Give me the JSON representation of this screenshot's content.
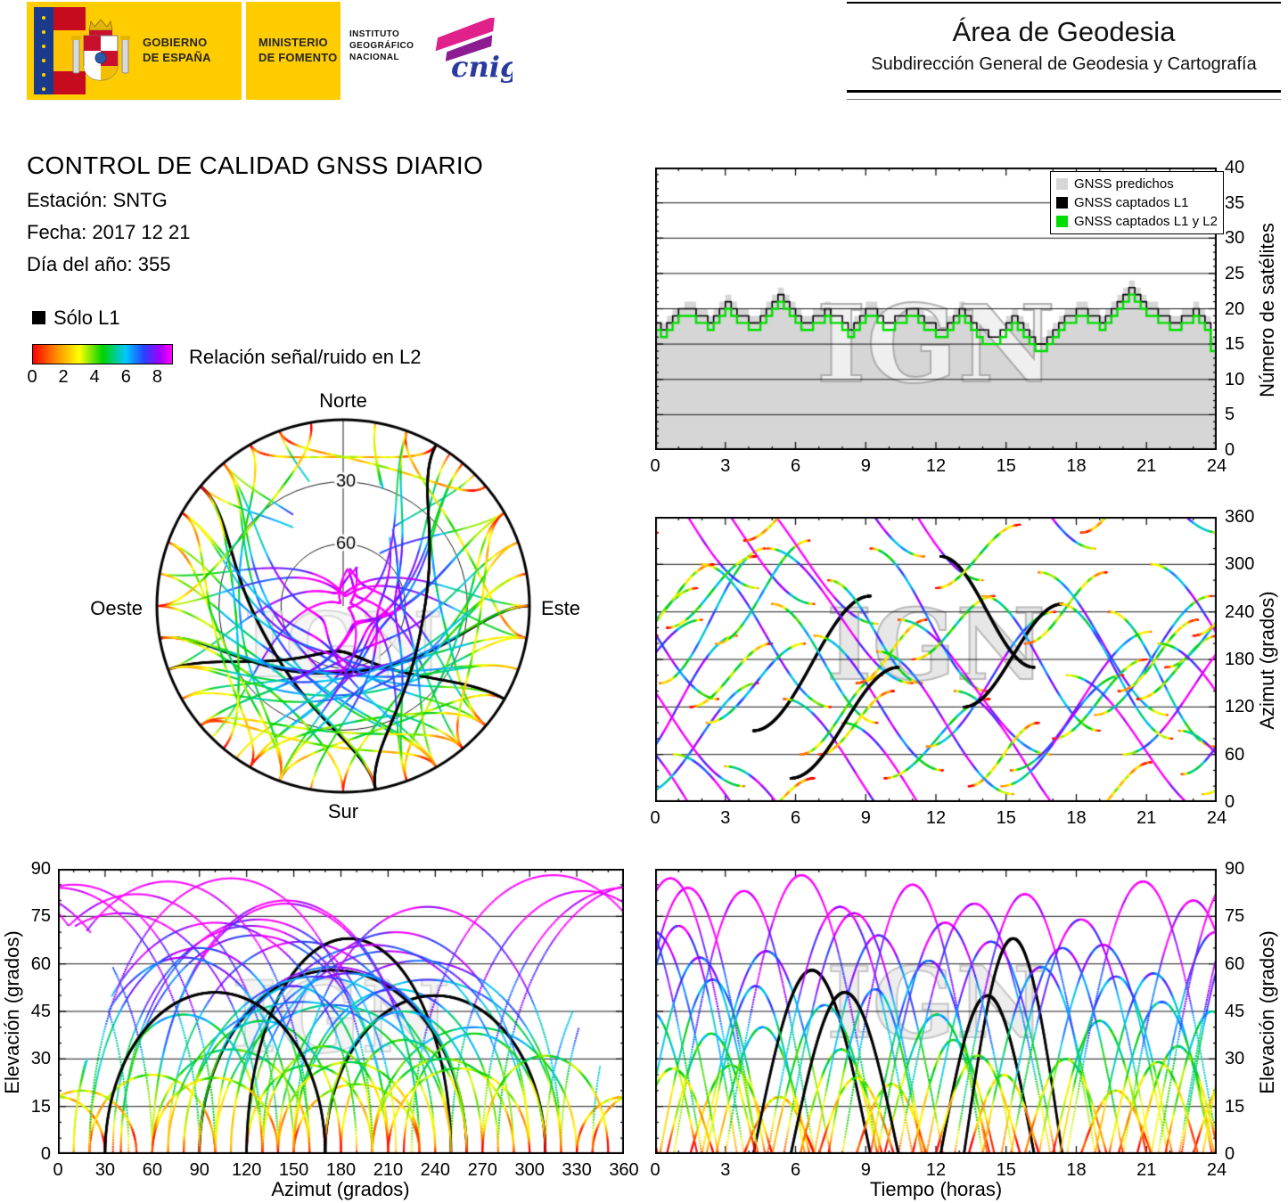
{
  "header": {
    "gobierno_line1": "GOBIERNO",
    "gobierno_line2": "DE ESPAÑA",
    "ministerio_line1": "MINISTERIO",
    "ministerio_line2": "DE FOMENTO",
    "instituto_lines": [
      "INSTITUTO",
      "GEOGRÁFICO",
      "NACIONAL"
    ],
    "cnig": "cnig",
    "area_title": "Área de Geodesia",
    "area_subtitle": "Subdirección General de Geodesia y Cartografía"
  },
  "report": {
    "title": "CONTROL DE CALIDAD GNSS DIARIO",
    "station_label": "Estación: SNTG",
    "date_label": "Fecha: 2017 12 21",
    "doy_label": "Día del año: 355"
  },
  "snr_legend": {
    "l1_only_label": "Sólo L1",
    "bar_label": "Relación señal/ruido en L2",
    "ticks": [
      0,
      2,
      4,
      6,
      8
    ],
    "scale_max": 9
  },
  "watermark_text": "IGN",
  "colors": {
    "accent_yellow": "#FFCC00",
    "predicted_gray": "#d6d6d6",
    "captured_green": "#00dd00",
    "black": "#000000"
  },
  "snr_colormap": [
    {
      "v": 0.0,
      "c": "#ff0000"
    },
    {
      "v": 1.5,
      "c": "#ff8c00"
    },
    {
      "v": 3.0,
      "c": "#ffff00"
    },
    {
      "v": 4.5,
      "c": "#00d200"
    },
    {
      "v": 6.0,
      "c": "#00c8ff"
    },
    {
      "v": 7.2,
      "c": "#2840ff"
    },
    {
      "v": 8.2,
      "c": "#a000ff"
    },
    {
      "v": 9.0,
      "c": "#ff00ff"
    }
  ],
  "satellite_passes": {
    "format": [
      "start_hour",
      "duration_hours",
      "max_elevation_deg",
      "azimuth_rise_deg",
      "azimuth_set_deg",
      "snr_offset",
      "l1_only"
    ],
    "passes": [
      [
        -1.5,
        5.0,
        72,
        35,
        210,
        0.5,
        0
      ],
      [
        0.2,
        4.5,
        55,
        150,
        320,
        -0.3,
        0
      ],
      [
        0.8,
        6.0,
        83,
        60,
        250,
        0.8,
        0
      ],
      [
        1.5,
        3.5,
        28,
        120,
        200,
        -0.5,
        0
      ],
      [
        2.0,
        5.5,
        64,
        300,
        120,
        0.2,
        0
      ],
      [
        2.6,
        4.0,
        40,
        200,
        330,
        0.0,
        0
      ],
      [
        3.0,
        6.5,
        88,
        45,
        225,
        1.0,
        0
      ],
      [
        3.8,
        3.0,
        18,
        330,
        30,
        -1.0,
        0
      ],
      [
        4.2,
        5.0,
        58,
        90,
        260,
        0.4,
        1
      ],
      [
        5.0,
        4.5,
        47,
        250,
        100,
        -0.2,
        0
      ],
      [
        5.5,
        6.0,
        76,
        130,
        310,
        0.6,
        0
      ],
      [
        6.2,
        3.5,
        33,
        60,
        160,
        -0.4,
        0
      ],
      [
        6.8,
        5.5,
        69,
        210,
        40,
        0.3,
        0
      ],
      [
        7.4,
        4.0,
        52,
        280,
        150,
        0.0,
        0
      ],
      [
        8.0,
        6.0,
        85,
        100,
        280,
        0.9,
        0
      ],
      [
        8.6,
        3.0,
        22,
        150,
        230,
        -0.8,
        0
      ],
      [
        9.2,
        5.0,
        61,
        320,
        140,
        0.2,
        0
      ],
      [
        9.8,
        4.5,
        44,
        30,
        130,
        -0.3,
        0
      ],
      [
        10.4,
        6.5,
        79,
        230,
        60,
        0.7,
        0
      ],
      [
        11.0,
        3.5,
        36,
        180,
        260,
        -0.5,
        0
      ],
      [
        11.6,
        5.5,
        67,
        70,
        240,
        0.4,
        0
      ],
      [
        12.2,
        4.0,
        50,
        310,
        170,
        0.0,
        1
      ],
      [
        12.8,
        6.0,
        82,
        140,
        320,
        0.8,
        0
      ],
      [
        13.4,
        3.0,
        25,
        20,
        100,
        -0.9,
        0
      ],
      [
        13.2,
        4.2,
        68,
        120,
        250,
        0.0,
        1
      ],
      [
        14.0,
        5.0,
        59,
        260,
        90,
        0.3,
        0
      ],
      [
        15.2,
        6.0,
        74,
        40,
        215,
        0.5,
        0
      ],
      [
        15.8,
        3.5,
        30,
        200,
        290,
        -0.6,
        0
      ],
      [
        16.4,
        5.5,
        66,
        290,
        110,
        0.2,
        0
      ],
      [
        17.0,
        4.0,
        42,
        80,
        180,
        -0.4,
        0
      ],
      [
        17.6,
        6.5,
        86,
        160,
        340,
        0.9,
        0
      ],
      [
        18.2,
        3.0,
        20,
        340,
        50,
        -1.0,
        0
      ],
      [
        18.8,
        5.0,
        57,
        110,
        260,
        0.1,
        0
      ],
      [
        19.4,
        4.5,
        48,
        240,
        70,
        -0.1,
        0
      ],
      [
        20.0,
        6.0,
        80,
        60,
        230,
        0.7,
        0
      ],
      [
        20.6,
        3.5,
        34,
        130,
        210,
        -0.5,
        0
      ],
      [
        21.2,
        5.5,
        70,
        300,
        130,
        0.4,
        0
      ],
      [
        21.8,
        4.0,
        45,
        170,
        270,
        -0.2,
        0
      ],
      [
        22.4,
        6.0,
        84,
        90,
        270,
        0.8,
        0
      ],
      [
        23.0,
        3.5,
        27,
        210,
        300,
        -0.7,
        0
      ],
      [
        23.4,
        5.0,
        62,
        10,
        150,
        0.2,
        0
      ],
      [
        0.5,
        3.8,
        38,
        220,
        310,
        -0.3,
        0
      ],
      [
        2.2,
        4.2,
        53,
        100,
        200,
        0.1,
        0
      ],
      [
        4.8,
        6.2,
        78,
        320,
        150,
        0.6,
        0
      ],
      [
        7.0,
        3.2,
        24,
        60,
        140,
        -0.8,
        0
      ],
      [
        9.5,
        5.8,
        73,
        190,
        10,
        0.5,
        0
      ],
      [
        12.0,
        3.6,
        31,
        270,
        350,
        -0.6,
        0
      ],
      [
        14.8,
        5.2,
        65,
        20,
        160,
        0.3,
        0
      ],
      [
        17.3,
        4.8,
        56,
        250,
        80,
        0.0,
        0
      ],
      [
        19.8,
        3.4,
        29,
        140,
        230,
        -0.7,
        0
      ],
      [
        21.5,
        6.3,
        87,
        200,
        20,
        0.9,
        0
      ],
      [
        5.8,
        4.6,
        51,
        30,
        170,
        -0.1,
        1
      ]
    ]
  },
  "chart_data": [
    {
      "id": "counts",
      "type": "area",
      "ylabel": "Número de satélites",
      "xlim": [
        0,
        24
      ],
      "ylim": [
        0,
        40
      ],
      "xticks": [
        0,
        3,
        6,
        9,
        12,
        15,
        18,
        21,
        24
      ],
      "yticks": [
        0,
        5,
        10,
        15,
        20,
        25,
        30,
        35,
        40
      ],
      "step_hours": 0.25,
      "legend": [
        {
          "label": "GNSS predichos",
          "color": "#d6d6d6"
        },
        {
          "label": "GNSS captados L1",
          "color": "#000000"
        },
        {
          "label": "GNSS captados L1 y L2",
          "color": "#00dd00"
        }
      ],
      "series": {
        "predicted": [
          18,
          18,
          19,
          20,
          20,
          21,
          21,
          20,
          20,
          19,
          20,
          21,
          22,
          21,
          20,
          20,
          19,
          19,
          20,
          21,
          22,
          23,
          22,
          21,
          20,
          19,
          19,
          20,
          20,
          21,
          20,
          20,
          19,
          18,
          19,
          20,
          21,
          21,
          20,
          19,
          19,
          20,
          20,
          21,
          21,
          20,
          19,
          19,
          18,
          18,
          19,
          20,
          21,
          20,
          19,
          18,
          18,
          17,
          17,
          18,
          19,
          20,
          19,
          18,
          17,
          16,
          16,
          17,
          18,
          19,
          20,
          20,
          21,
          21,
          20,
          20,
          19,
          20,
          21,
          22,
          23,
          24,
          23,
          22,
          21,
          21,
          20,
          20,
          19,
          19,
          20,
          20,
          21,
          20,
          19,
          16,
          15
        ],
        "captured_l1": [
          18,
          17,
          18,
          19,
          20,
          20,
          20,
          19,
          19,
          18,
          19,
          20,
          21,
          20,
          19,
          19,
          18,
          18,
          19,
          20,
          21,
          22,
          21,
          20,
          19,
          18,
          18,
          19,
          19,
          20,
          19,
          19,
          18,
          17,
          18,
          19,
          20,
          20,
          19,
          18,
          18,
          19,
          19,
          20,
          20,
          19,
          18,
          18,
          17,
          17,
          18,
          19,
          20,
          19,
          18,
          17,
          17,
          16,
          16,
          17,
          18,
          19,
          18,
          17,
          16,
          15,
          15,
          16,
          17,
          18,
          19,
          19,
          20,
          20,
          19,
          19,
          18,
          19,
          20,
          21,
          22,
          23,
          22,
          21,
          20,
          20,
          19,
          19,
          18,
          18,
          19,
          19,
          20,
          19,
          18,
          15,
          14
        ],
        "captured_l1_l2": [
          17,
          16,
          17,
          18,
          19,
          19,
          19,
          18,
          18,
          17,
          18,
          19,
          20,
          19,
          18,
          18,
          17,
          17,
          18,
          19,
          20,
          21,
          20,
          19,
          18,
          17,
          17,
          18,
          18,
          19,
          18,
          18,
          17,
          16,
          17,
          18,
          19,
          19,
          18,
          17,
          17,
          18,
          18,
          19,
          19,
          18,
          17,
          17,
          16,
          16,
          17,
          18,
          19,
          18,
          17,
          16,
          15,
          15,
          15,
          16,
          17,
          18,
          17,
          16,
          15,
          14,
          14,
          15,
          16,
          17,
          18,
          18,
          19,
          19,
          18,
          18,
          17,
          18,
          19,
          20,
          21,
          22,
          21,
          20,
          19,
          19,
          18,
          18,
          17,
          17,
          18,
          18,
          19,
          18,
          17,
          14,
          13
        ]
      }
    },
    {
      "id": "azimuth_time",
      "type": "scatter",
      "x": "time",
      "y": "azimuth",
      "ylabel": "Azimut (grados)",
      "xlim": [
        0,
        24
      ],
      "ylim": [
        0,
        360
      ],
      "xticks": [
        0,
        3,
        6,
        9,
        12,
        15,
        18,
        21,
        24
      ],
      "yticks": [
        0,
        60,
        120,
        180,
        240,
        300,
        360
      ]
    },
    {
      "id": "elevation_azimuth",
      "type": "scatter",
      "x": "azimuth",
      "y": "elevation",
      "xlabel": "Azimut (grados)",
      "ylabel": "Elevación (grados)",
      "xlim": [
        0,
        360
      ],
      "ylim": [
        0,
        90
      ],
      "xticks": [
        0,
        30,
        60,
        90,
        120,
        150,
        180,
        210,
        240,
        270,
        300,
        330,
        360
      ],
      "yticks": [
        0,
        15,
        30,
        45,
        60,
        75,
        90
      ]
    },
    {
      "id": "elevation_time",
      "type": "scatter",
      "x": "time",
      "y": "elevation",
      "xlabel": "Tiempo (horas)",
      "ylabel": "Elevación (grados)",
      "xlim": [
        0,
        24
      ],
      "ylim": [
        0,
        90
      ],
      "xticks": [
        0,
        3,
        6,
        9,
        12,
        15,
        18,
        21,
        24
      ],
      "yticks": [
        0,
        15,
        30,
        45,
        60,
        75,
        90
      ]
    },
    {
      "id": "skyplot",
      "type": "skyplot",
      "north": "Norte",
      "south": "Sur",
      "east": "Este",
      "west": "Oeste",
      "ring_elevations": [
        30,
        60
      ],
      "ring_labels": [
        "30",
        "60"
      ]
    }
  ]
}
